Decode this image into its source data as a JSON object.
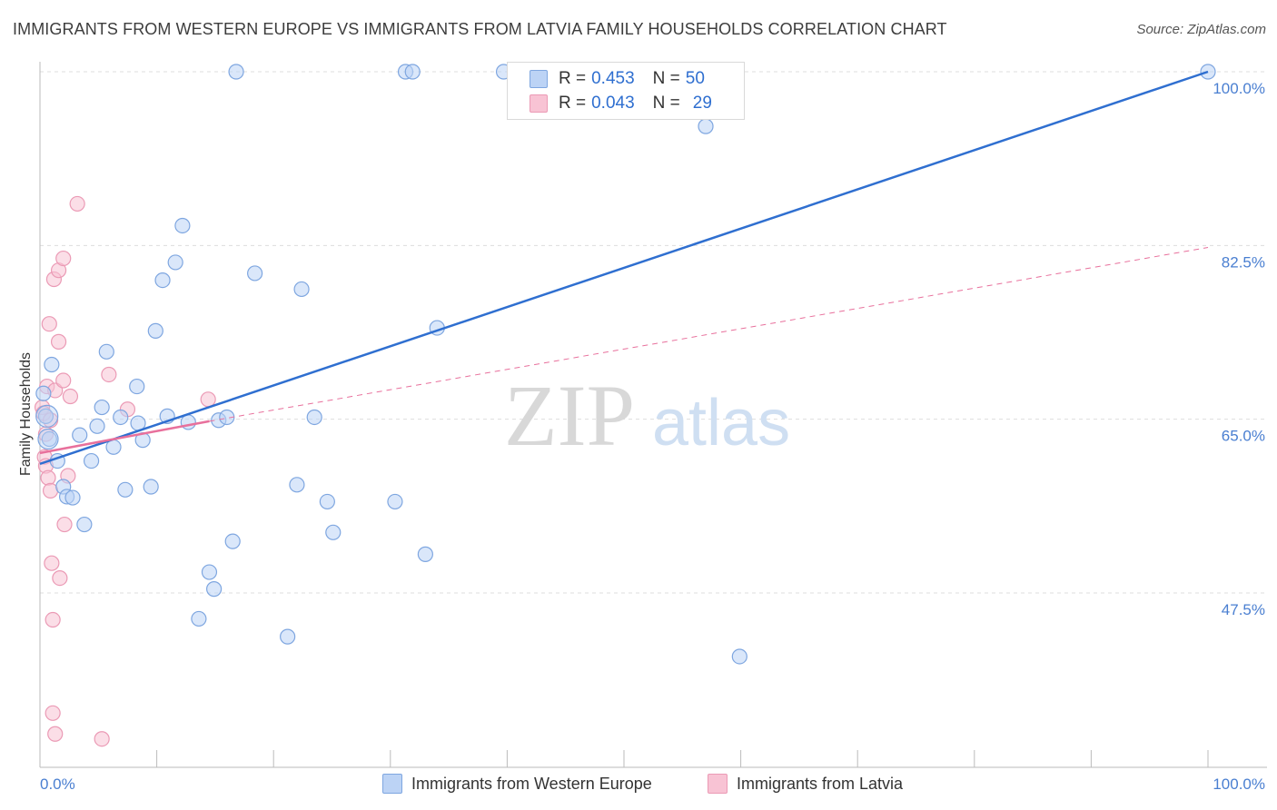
{
  "title": "IMMIGRANTS FROM WESTERN EUROPE VS IMMIGRANTS FROM LATVIA FAMILY HOUSEHOLDS CORRELATION CHART",
  "source": "Source: ZipAtlas.com",
  "colors": {
    "blue": "#2f6fd0",
    "blue_fill": "#bcd3f5",
    "pink": "#e8709c",
    "pink_fill": "#f8c3d4",
    "grid": "#dddddd",
    "tick_text": "#4a7fd1"
  },
  "legend": {
    "rows": [
      {
        "r_label": "R = ",
        "r_value": "0.453",
        "n_label": "N = ",
        "n_value": "50"
      },
      {
        "r_label": "R = ",
        "r_value": "0.043",
        "n_label": "N = ",
        "n_value": "29"
      }
    ]
  },
  "bottom_legend": {
    "western_europe": "Immigrants from Western Europe",
    "latvia": "Immigrants from Latvia"
  },
  "chart_data": {
    "type": "scatter",
    "xlabel": "",
    "ylabel": "Family Households",
    "xlim": [
      0,
      100
    ],
    "ylim": [
      33.0,
      102.0
    ],
    "x_tick_labels": [
      {
        "value": 0,
        "label": "0.0%"
      },
      {
        "value": 100,
        "label": "100.0%"
      }
    ],
    "y_ticks": [
      {
        "value": 100.0,
        "label": "100.0%"
      },
      {
        "value": 82.5,
        "label": "82.5%"
      },
      {
        "value": 65.0,
        "label": "65.0%"
      },
      {
        "value": 47.5,
        "label": "47.5%"
      }
    ],
    "grid": true,
    "legend_position": "top-center",
    "series": [
      {
        "name": "Immigrants from Western Europe",
        "color": "#2f6fd0",
        "points": [
          {
            "x": 0.3,
            "y": 67.6
          },
          {
            "x": 0.5,
            "y": 65.3
          },
          {
            "x": 0.8,
            "y": 63.0
          },
          {
            "x": 1.5,
            "y": 60.8
          },
          {
            "x": 2.0,
            "y": 58.2
          },
          {
            "x": 2.3,
            "y": 57.2
          },
          {
            "x": 2.8,
            "y": 57.1
          },
          {
            "x": 3.4,
            "y": 63.4
          },
          {
            "x": 3.8,
            "y": 54.4
          },
          {
            "x": 4.4,
            "y": 60.8
          },
          {
            "x": 4.9,
            "y": 64.3
          },
          {
            "x": 5.3,
            "y": 66.2
          },
          {
            "x": 5.7,
            "y": 71.8
          },
          {
            "x": 6.3,
            "y": 62.2
          },
          {
            "x": 6.9,
            "y": 65.2
          },
          {
            "x": 7.3,
            "y": 57.9
          },
          {
            "x": 8.3,
            "y": 68.3
          },
          {
            "x": 8.4,
            "y": 64.6
          },
          {
            "x": 8.8,
            "y": 62.9
          },
          {
            "x": 9.5,
            "y": 58.2
          },
          {
            "x": 9.9,
            "y": 73.9
          },
          {
            "x": 10.5,
            "y": 79.0
          },
          {
            "x": 10.9,
            "y": 65.3
          },
          {
            "x": 11.6,
            "y": 80.8
          },
          {
            "x": 12.2,
            "y": 84.5
          },
          {
            "x": 12.7,
            "y": 64.7
          },
          {
            "x": 13.6,
            "y": 44.9
          },
          {
            "x": 14.5,
            "y": 49.6
          },
          {
            "x": 14.9,
            "y": 47.9
          },
          {
            "x": 15.3,
            "y": 64.9
          },
          {
            "x": 16.0,
            "y": 65.2
          },
          {
            "x": 16.5,
            "y": 52.7
          },
          {
            "x": 16.8,
            "y": 100.0
          },
          {
            "x": 18.4,
            "y": 79.7
          },
          {
            "x": 21.2,
            "y": 43.1
          },
          {
            "x": 22.0,
            "y": 58.4
          },
          {
            "x": 22.4,
            "y": 78.1
          },
          {
            "x": 23.5,
            "y": 65.2
          },
          {
            "x": 24.6,
            "y": 56.7
          },
          {
            "x": 25.1,
            "y": 53.6
          },
          {
            "x": 30.4,
            "y": 56.7
          },
          {
            "x": 31.3,
            "y": 100.0
          },
          {
            "x": 31.9,
            "y": 100.0
          },
          {
            "x": 33.0,
            "y": 51.4
          },
          {
            "x": 34.0,
            "y": 74.2
          },
          {
            "x": 39.7,
            "y": 100.0
          },
          {
            "x": 57.0,
            "y": 94.5
          },
          {
            "x": 59.9,
            "y": 41.1
          },
          {
            "x": 100.0,
            "y": 100.0
          },
          {
            "x": 1.0,
            "y": 70.5
          }
        ],
        "trend": {
          "x0": 0,
          "y0": 60.5,
          "x1": 100,
          "y1": 100.0
        }
      },
      {
        "name": "Immigrants from Latvia",
        "color": "#e8709c",
        "points": [
          {
            "x": 0.2,
            "y": 66.2
          },
          {
            "x": 0.3,
            "y": 65.6
          },
          {
            "x": 0.4,
            "y": 61.2
          },
          {
            "x": 0.5,
            "y": 60.3
          },
          {
            "x": 0.6,
            "y": 68.3
          },
          {
            "x": 0.7,
            "y": 59.1
          },
          {
            "x": 0.8,
            "y": 74.6
          },
          {
            "x": 0.9,
            "y": 57.8
          },
          {
            "x": 1.0,
            "y": 50.5
          },
          {
            "x": 1.1,
            "y": 44.8
          },
          {
            "x": 1.2,
            "y": 79.1
          },
          {
            "x": 1.3,
            "y": 67.9
          },
          {
            "x": 1.1,
            "y": 35.4
          },
          {
            "x": 1.3,
            "y": 33.3
          },
          {
            "x": 1.6,
            "y": 80.0
          },
          {
            "x": 1.6,
            "y": 72.8
          },
          {
            "x": 1.7,
            "y": 49.0
          },
          {
            "x": 2.0,
            "y": 68.9
          },
          {
            "x": 2.0,
            "y": 81.2
          },
          {
            "x": 2.1,
            "y": 54.4
          },
          {
            "x": 2.4,
            "y": 59.3
          },
          {
            "x": 2.6,
            "y": 67.3
          },
          {
            "x": 3.2,
            "y": 86.7
          },
          {
            "x": 5.3,
            "y": 32.8
          },
          {
            "x": 5.9,
            "y": 69.5
          },
          {
            "x": 7.5,
            "y": 66.0
          },
          {
            "x": 14.4,
            "y": 67.0
          },
          {
            "x": 0.5,
            "y": 63.5
          },
          {
            "x": 0.9,
            "y": 64.9
          }
        ],
        "trend_solid": {
          "x0": 0,
          "y0": 61.6,
          "x1": 14.5,
          "y1": 64.8
        },
        "trend_dashed": {
          "x0": 14.5,
          "y0": 64.8,
          "x1": 100,
          "y1": 82.3
        }
      }
    ]
  }
}
